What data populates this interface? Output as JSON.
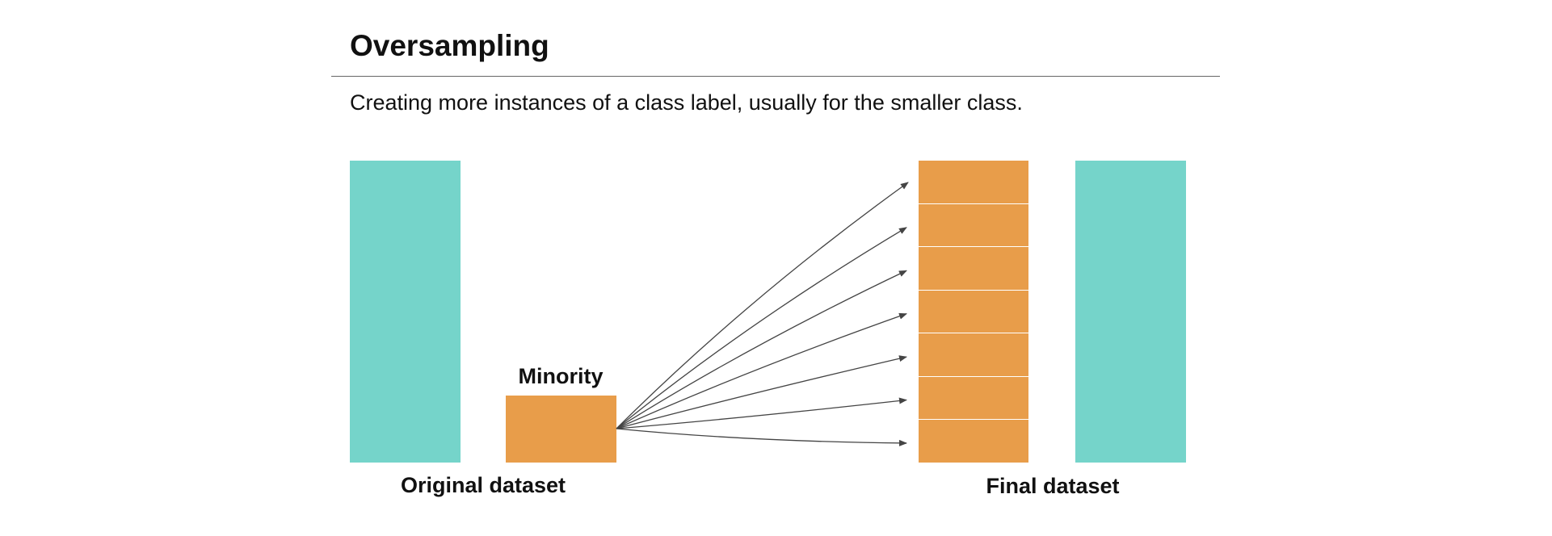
{
  "header": {
    "title": "Oversampling",
    "subtitle": "Creating more instances of a class label, usually for the smaller class."
  },
  "labels": {
    "minority": "Minority",
    "original_dataset": "Original dataset",
    "final_dataset": "Final dataset"
  },
  "colors": {
    "majority": "#75d4ca",
    "minority": "#e89d4a",
    "arrow": "#444444"
  },
  "final_minority_copies": 7
}
